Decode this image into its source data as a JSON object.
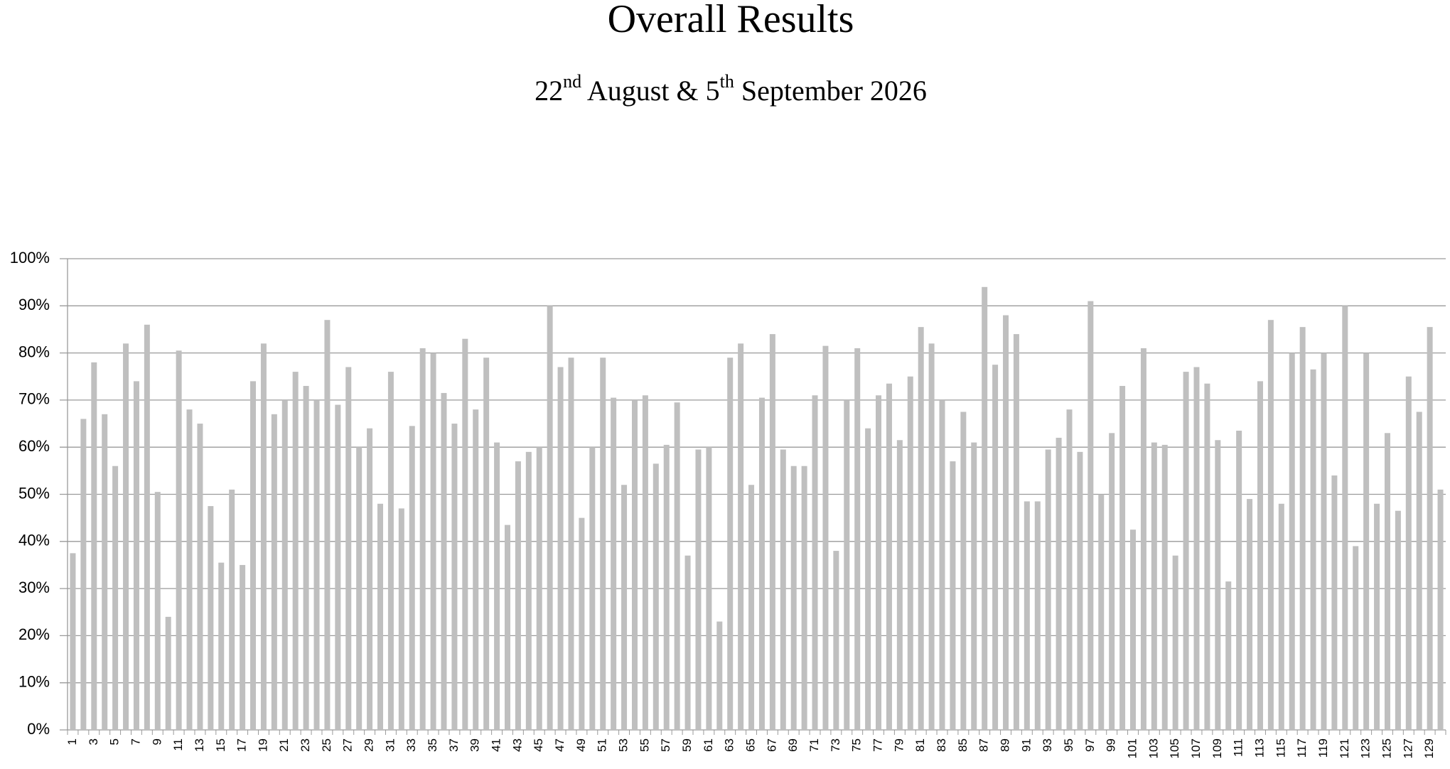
{
  "chart_data": {
    "type": "bar",
    "title": "Overall Results",
    "subtitle": [
      "22",
      "nd",
      " August & 5",
      "th",
      " September 2026"
    ],
    "categories": [
      "1",
      null,
      "3",
      null,
      "5",
      null,
      "7",
      null,
      "9",
      null,
      "11",
      null,
      "13",
      null,
      "15",
      null,
      "17",
      null,
      "19",
      null,
      "21",
      null,
      "23",
      null,
      "25",
      null,
      "27",
      null,
      "29",
      null,
      "31",
      null,
      "33",
      null,
      "35",
      null,
      "37",
      null,
      "39",
      null,
      "41",
      null,
      "43",
      null,
      "45",
      null,
      "47",
      null,
      "49",
      null,
      "51",
      null,
      "53",
      null,
      "55",
      null,
      "57",
      null,
      "59",
      null,
      "61",
      null,
      "63",
      null,
      "65",
      null,
      "67",
      null,
      "69",
      null,
      "71",
      null,
      "73",
      null,
      "75",
      null,
      "77",
      null,
      "79",
      null,
      "81",
      null,
      "83",
      null,
      "85",
      null,
      "87",
      null,
      "89",
      null,
      "91",
      null,
      "93",
      null,
      "95",
      null,
      "97",
      null,
      "99",
      null,
      "101",
      null,
      "103",
      null,
      "105",
      null,
      "107",
      null,
      "109",
      null,
      "111",
      null,
      "113",
      null,
      "115",
      null,
      "117",
      null,
      "119",
      null,
      "121",
      null,
      "123",
      null,
      "125",
      null,
      "127",
      null,
      "129",
      null
    ],
    "values": [
      37.5,
      66,
      78,
      67,
      56,
      82,
      74,
      86,
      50.5,
      24,
      80.5,
      68,
      65,
      47.5,
      35.5,
      51,
      35,
      74,
      82,
      67,
      70,
      76,
      73,
      70,
      87,
      69,
      77,
      60,
      64,
      48,
      76,
      47,
      64.5,
      81,
      80,
      71.5,
      65,
      83,
      68,
      79,
      61,
      43.5,
      57,
      59,
      60,
      90,
      77,
      79,
      45,
      60,
      79,
      70.5,
      52,
      70,
      71,
      56.5,
      60.5,
      69.5,
      37,
      59.5,
      60,
      23,
      79,
      82,
      52,
      70.5,
      84,
      59.5,
      56,
      56,
      71,
      81.5,
      38,
      70,
      81,
      64,
      71,
      73.5,
      61.5,
      75,
      85.5,
      82,
      70,
      57,
      67.5,
      61,
      94,
      77.5,
      88,
      84,
      48.5,
      48.5,
      59.5,
      62,
      68,
      59,
      91,
      50,
      63,
      73,
      42.5,
      81,
      61,
      60.5,
      37,
      76,
      77,
      73.5,
      61.5,
      31.5,
      63.5,
      49,
      74,
      87,
      48,
      80,
      85.5,
      76.5,
      80,
      54,
      90,
      39,
      80,
      48,
      63,
      46.5,
      75,
      67.5,
      85.5,
      51
    ],
    "color": "#bfbfbf",
    "ylim": [
      0,
      100
    ],
    "yticks": [
      {
        "value": 0,
        "label": "0%"
      },
      {
        "value": 10,
        "label": "10%"
      },
      {
        "value": 20,
        "label": "20%"
      },
      {
        "value": 30,
        "label": "30%"
      },
      {
        "value": 40,
        "label": "40%"
      },
      {
        "value": 50,
        "label": "50%"
      },
      {
        "value": 60,
        "label": "60%"
      },
      {
        "value": 70,
        "label": "70%"
      },
      {
        "value": 80,
        "label": "80%"
      },
      {
        "value": 90,
        "label": "90%"
      },
      {
        "value": 100,
        "label": "100%"
      }
    ],
    "grid": true
  }
}
